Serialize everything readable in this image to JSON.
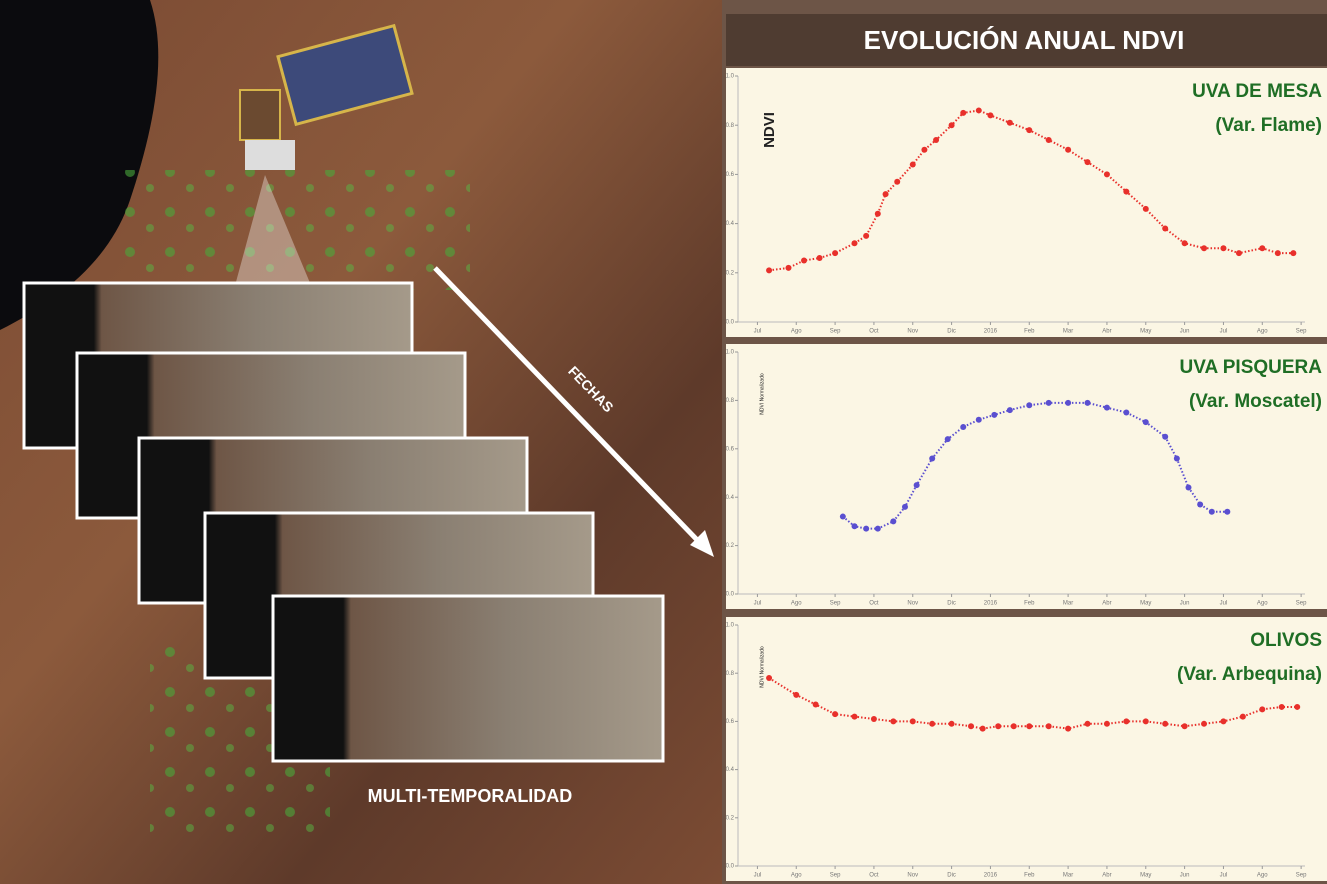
{
  "title": "EVOLUCIÓN ANUAL NDVI",
  "image_labels": {
    "arrow": "FECHAS",
    "stack": "MULTI-TEMPORALIDAD"
  },
  "chart_data": [
    {
      "type": "scatter",
      "title": "UVA DE MESA",
      "subtitle": "(Var. Flame)",
      "y_label": "NDVI",
      "color": "#e8302b",
      "x": [
        0.3,
        0.8,
        1.2,
        1.6,
        2.0,
        2.5,
        2.8,
        3.1,
        3.3,
        3.6,
        4.0,
        4.3,
        4.6,
        5.0,
        5.3,
        5.7,
        6.0,
        6.5,
        7.0,
        7.5,
        8.0,
        8.5,
        9.0,
        9.5,
        10.0,
        10.5,
        11.0,
        11.5,
        12.0,
        12.4,
        13.0,
        13.4,
        13.8
      ],
      "values": [
        0.21,
        0.22,
        0.25,
        0.26,
        0.28,
        0.32,
        0.35,
        0.44,
        0.52,
        0.57,
        0.64,
        0.7,
        0.74,
        0.8,
        0.85,
        0.86,
        0.84,
        0.81,
        0.78,
        0.74,
        0.7,
        0.65,
        0.6,
        0.53,
        0.46,
        0.38,
        0.32,
        0.3,
        0.3,
        0.28,
        0.3,
        0.28,
        0.28
      ],
      "xlim": [
        -0.5,
        14.1
      ],
      "ylim": [
        0,
        1
      ],
      "xticks": [
        {
          "value": 0,
          "label": "Jul"
        },
        {
          "value": 1,
          "label": "Ago"
        },
        {
          "value": 2,
          "label": "Sep"
        },
        {
          "value": 3,
          "label": "Oct"
        },
        {
          "value": 4,
          "label": "Nov"
        },
        {
          "value": 5,
          "label": "Dic"
        },
        {
          "value": 6,
          "label": "2016"
        },
        {
          "value": 7,
          "label": "Feb"
        },
        {
          "value": 8,
          "label": "Mar"
        },
        {
          "value": 9,
          "label": "Abr"
        },
        {
          "value": 10,
          "label": "May"
        },
        {
          "value": 11,
          "label": "Jun"
        },
        {
          "value": 12,
          "label": "Jul"
        },
        {
          "value": 13,
          "label": "Ago"
        },
        {
          "value": 14,
          "label": "Sep"
        }
      ],
      "yticks": [
        {
          "value": 0,
          "label": "0.0"
        },
        0.2,
        0.4,
        0.6,
        0.8,
        {
          "value": 1,
          "label": "1.0"
        }
      ]
    },
    {
      "type": "scatter",
      "title": "UVA PISQUERA",
      "subtitle": "(Var. Moscatel)",
      "y_label": "NDVI Normalizado",
      "color": "#5a4fd0",
      "x": [
        2.2,
        2.5,
        2.8,
        3.1,
        3.5,
        3.8,
        4.1,
        4.5,
        4.9,
        5.3,
        5.7,
        6.1,
        6.5,
        7.0,
        7.5,
        8.0,
        8.5,
        9.0,
        9.5,
        10.0,
        10.5,
        10.8,
        11.1,
        11.4,
        11.7,
        12.1
      ],
      "values": [
        0.32,
        0.28,
        0.27,
        0.27,
        0.3,
        0.36,
        0.45,
        0.56,
        0.64,
        0.69,
        0.72,
        0.74,
        0.76,
        0.78,
        0.79,
        0.79,
        0.79,
        0.77,
        0.75,
        0.71,
        0.65,
        0.56,
        0.44,
        0.37,
        0.34,
        0.34
      ],
      "xlim": [
        -0.5,
        14.1
      ],
      "ylim": [
        0,
        1
      ],
      "xticks": [
        {
          "value": 0,
          "label": "Jul"
        },
        {
          "value": 1,
          "label": "Ago"
        },
        {
          "value": 2,
          "label": "Sep"
        },
        {
          "value": 3,
          "label": "Oct"
        },
        {
          "value": 4,
          "label": "Nov"
        },
        {
          "value": 5,
          "label": "Dic"
        },
        {
          "value": 6,
          "label": "2016"
        },
        {
          "value": 7,
          "label": "Feb"
        },
        {
          "value": 8,
          "label": "Mar"
        },
        {
          "value": 9,
          "label": "Abr"
        },
        {
          "value": 10,
          "label": "May"
        },
        {
          "value": 11,
          "label": "Jun"
        },
        {
          "value": 12,
          "label": "Jul"
        },
        {
          "value": 13,
          "label": "Ago"
        },
        {
          "value": 14,
          "label": "Sep"
        }
      ],
      "yticks": [
        {
          "value": 0,
          "label": "0.0"
        },
        0.2,
        0.4,
        0.6,
        0.8,
        {
          "value": 1,
          "label": "1.0"
        }
      ]
    },
    {
      "type": "scatter",
      "title": "OLIVOS",
      "subtitle": "(Var. Arbequina)",
      "y_label": "NDVI Normalizado",
      "color": "#e8302b",
      "x": [
        0.3,
        1.0,
        1.5,
        2.0,
        2.5,
        3.0,
        3.5,
        4.0,
        4.5,
        5.0,
        5.5,
        5.8,
        6.2,
        6.6,
        7.0,
        7.5,
        8.0,
        8.5,
        9.0,
        9.5,
        10.0,
        10.5,
        11.0,
        11.5,
        12.0,
        12.5,
        13.0,
        13.5,
        13.9
      ],
      "values": [
        0.78,
        0.71,
        0.67,
        0.63,
        0.62,
        0.61,
        0.6,
        0.6,
        0.59,
        0.59,
        0.58,
        0.57,
        0.58,
        0.58,
        0.58,
        0.58,
        0.57,
        0.59,
        0.59,
        0.6,
        0.6,
        0.59,
        0.58,
        0.59,
        0.6,
        0.62,
        0.65,
        0.66,
        0.66
      ],
      "xlim": [
        -0.5,
        14.1
      ],
      "ylim": [
        0,
        1
      ],
      "xticks": [
        {
          "value": 0,
          "label": "Jul"
        },
        {
          "value": 1,
          "label": "Ago"
        },
        {
          "value": 2,
          "label": "Sep"
        },
        {
          "value": 3,
          "label": "Oct"
        },
        {
          "value": 4,
          "label": "Nov"
        },
        {
          "value": 5,
          "label": "Dic"
        },
        {
          "value": 6,
          "label": "2016"
        },
        {
          "value": 7,
          "label": "Feb"
        },
        {
          "value": 8,
          "label": "Mar"
        },
        {
          "value": 9,
          "label": "Abr"
        },
        {
          "value": 10,
          "label": "May"
        },
        {
          "value": 11,
          "label": "Jun"
        },
        {
          "value": 12,
          "label": "Jul"
        },
        {
          "value": 13,
          "label": "Ago"
        },
        {
          "value": 14,
          "label": "Sep"
        }
      ],
      "yticks": [
        {
          "value": 0,
          "label": "0.0"
        },
        0.2,
        0.4,
        0.6,
        0.8,
        {
          "value": 1,
          "label": "1.0"
        }
      ]
    }
  ]
}
